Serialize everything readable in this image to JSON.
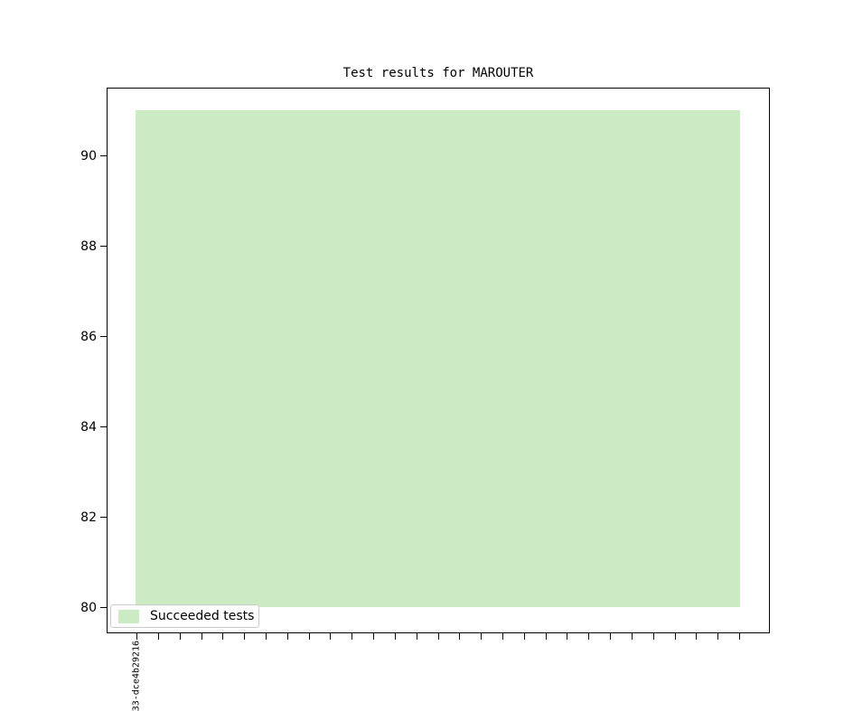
{
  "chart_data": {
    "type": "bar",
    "title": "Test results for MAROUTER",
    "categories": [
      "33-dce4b29216"
    ],
    "series": [
      {
        "name": "Succeeded tests",
        "values": [
          91
        ],
        "bottom": 80,
        "color": "#ccebc5"
      }
    ],
    "xlabel": "",
    "ylabel": "",
    "ylim": [
      79.44,
      91.48
    ],
    "yticks": [
      80,
      82,
      84,
      86,
      88,
      90
    ],
    "x_tick_count": 29,
    "grid": false,
    "legend": {
      "position": "lower-left",
      "entries": [
        {
          "label": "Succeeded tests",
          "color": "#ccebc5"
        }
      ]
    },
    "colors": {
      "bar_fill": "#ccebc5",
      "axis": "#000000",
      "legend_border": "#cccccc",
      "background": "#ffffff"
    }
  }
}
